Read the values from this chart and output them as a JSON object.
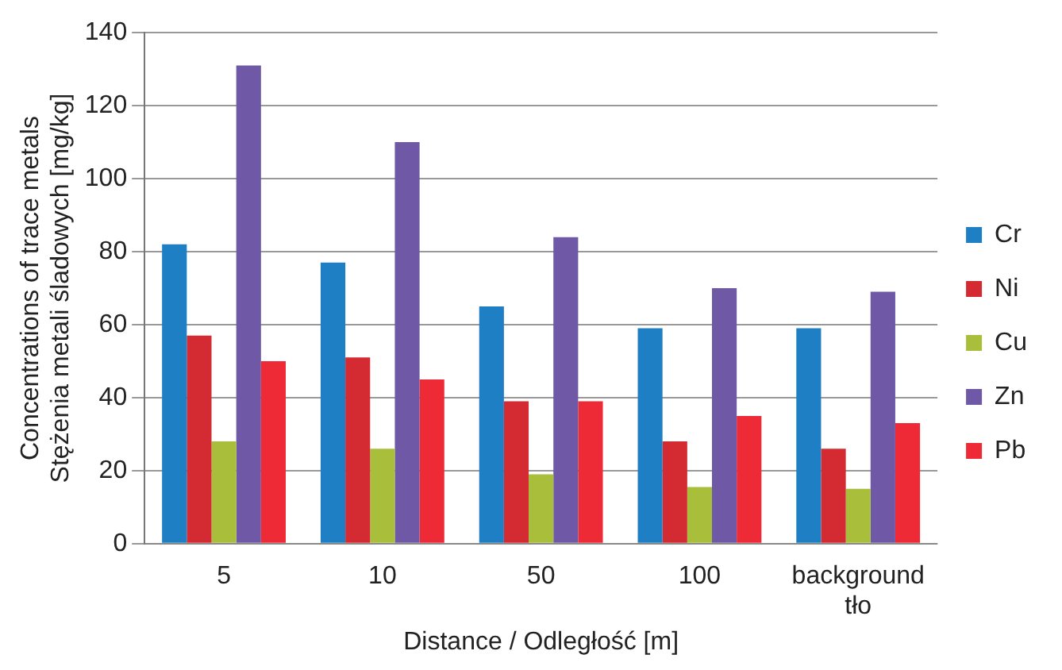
{
  "chart_data": {
    "type": "bar",
    "xlabel": "Distance / Odległość [m]",
    "ylabel": "Concentrations of trace metals\nStężenia metali śladowych [mg/kg]",
    "categories": [
      "5",
      "10",
      "50",
      "100",
      "background\ntło"
    ],
    "series": [
      {
        "name": "Cr",
        "color": "#1f7fc4",
        "values": [
          82,
          77,
          65,
          59,
          59
        ]
      },
      {
        "name": "Ni",
        "color": "#d42a32",
        "values": [
          57,
          51,
          39,
          28,
          26
        ]
      },
      {
        "name": "Cu",
        "color": "#a9bf3c",
        "values": [
          28,
          26,
          19,
          15.5,
          15
        ]
      },
      {
        "name": "Zn",
        "color": "#6f59a6",
        "values": [
          131,
          110,
          84,
          70,
          69
        ]
      },
      {
        "name": "Pb",
        "color": "#ee2a36",
        "values": [
          50,
          45,
          39,
          35,
          33
        ]
      }
    ],
    "ylim": [
      0,
      140
    ],
    "yticks": [
      0,
      20,
      40,
      60,
      80,
      100,
      120,
      140
    ],
    "grid": "y",
    "legend": "right"
  }
}
